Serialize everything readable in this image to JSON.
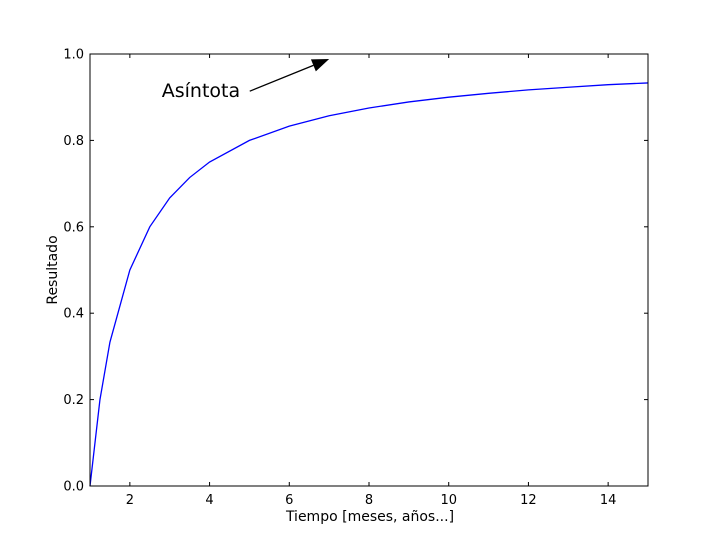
{
  "chart_data": {
    "type": "line",
    "xlabel": "Tiempo [meses, años...]",
    "ylabel": "Resultado",
    "xlim": [
      1,
      15
    ],
    "ylim": [
      0,
      1
    ],
    "x_ticks": [
      2,
      4,
      6,
      8,
      10,
      12,
      14
    ],
    "y_ticks": [
      0.0,
      0.2,
      0.4,
      0.6,
      0.8,
      1.0
    ],
    "x_tick_labels": [
      "2",
      "4",
      "6",
      "8",
      "10",
      "12",
      "14"
    ],
    "y_tick_labels": [
      "0.0",
      "0.2",
      "0.4",
      "0.6",
      "0.8",
      "1.0"
    ],
    "grid": false,
    "series": [
      {
        "color": "#0000ff",
        "x": [
          1,
          1.25,
          1.5,
          2,
          2.5,
          3,
          3.5,
          4,
          5,
          6,
          7,
          8,
          9,
          10,
          11,
          12,
          13,
          14,
          15
        ],
        "y": [
          0.0,
          0.2,
          0.333,
          0.5,
          0.6,
          0.667,
          0.714,
          0.75,
          0.8,
          0.833,
          0.857,
          0.875,
          0.889,
          0.9,
          0.909,
          0.917,
          0.923,
          0.929,
          0.933
        ]
      }
    ],
    "annotation": {
      "text": "Asíntota",
      "arrow_to": [
        7.0,
        1.0
      ],
      "text_at": [
        2.8,
        0.9
      ]
    }
  }
}
